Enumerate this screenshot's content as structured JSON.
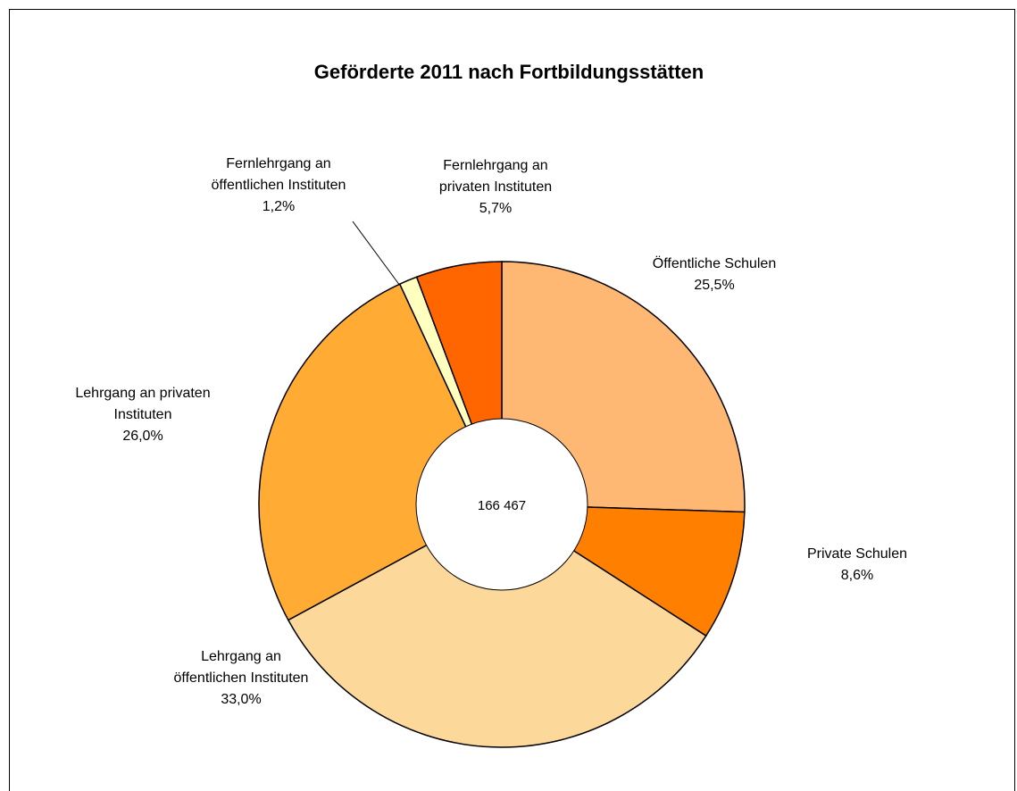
{
  "chart_data": {
    "type": "donut",
    "title": "Geförderte 2011 nach Fortbildungsstätten",
    "center_label": "166 467",
    "categories": [
      "Öffentliche Schulen",
      "Private Schulen",
      "Lehrgang an öffentlichen Instituten",
      "Lehrgang an privaten Instituten",
      "Fernlehrgang an öffentlichen Instituten",
      "Fernlehrgang an privaten Instituten"
    ],
    "values": [
      25.5,
      8.6,
      33.0,
      26.0,
      1.2,
      5.7
    ],
    "value_labels": [
      "25,5%",
      "8,6%",
      "33,0%",
      "26,0%",
      "1,2%",
      "5,7%"
    ],
    "colors": [
      "#ffb874",
      "#ff8000",
      "#fdd89b",
      "#ffab34",
      "#ffffc0",
      "#ff6600"
    ]
  }
}
